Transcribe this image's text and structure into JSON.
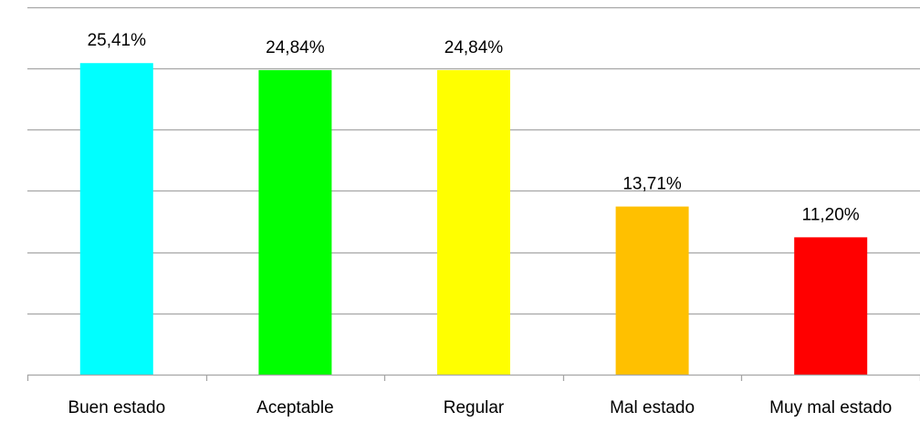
{
  "chart_data": {
    "type": "bar",
    "categories": [
      "Buen estado",
      "Aceptable",
      "Regular",
      "Mal estado",
      "Muy mal estado"
    ],
    "values": [
      25.41,
      24.84,
      24.84,
      13.71,
      11.2
    ],
    "data_labels": [
      "25,41%",
      "24,84%",
      "24,84%",
      "13,71%",
      "11,20%"
    ],
    "bar_colors": [
      "#00FFFF",
      "#00FF00",
      "#FFFF00",
      "#FFC000",
      "#FF0000"
    ],
    "ylim": [
      0,
      30
    ],
    "grid": true,
    "gridline_step": 5,
    "gridline_color": "#A6A6A6",
    "axis_color": "#A6A6A6",
    "legend": "none"
  }
}
